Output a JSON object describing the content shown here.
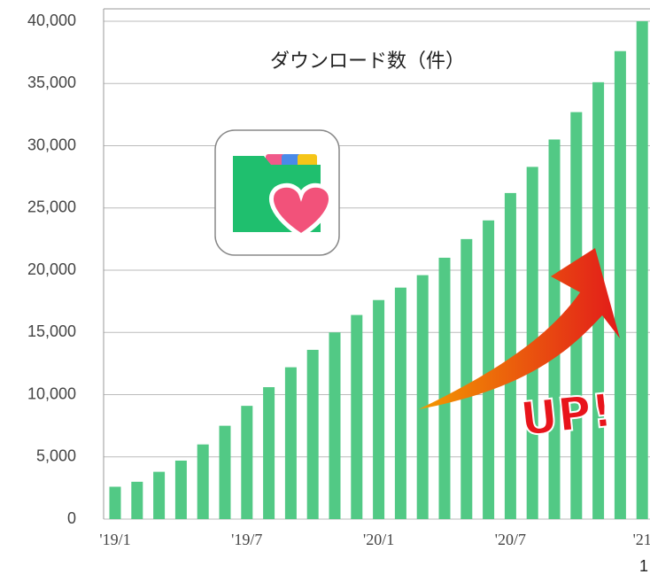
{
  "chart_data": {
    "type": "bar",
    "title": "ダウンロード数（件）",
    "categories": [
      "'19/1",
      null,
      null,
      null,
      null,
      null,
      "'19/7",
      null,
      null,
      null,
      null,
      null,
      "'20/1",
      null,
      null,
      null,
      null,
      null,
      "'20/7",
      null,
      null,
      null,
      null,
      null,
      "'21"
    ],
    "values": [
      2600,
      3000,
      3800,
      4700,
      6000,
      7500,
      9100,
      10600,
      12200,
      13600,
      15000,
      16400,
      17600,
      18600,
      19600,
      21000,
      22500,
      24000,
      26200,
      28300,
      30500,
      32700,
      35100,
      37600,
      40000
    ],
    "color": "#52c985",
    "ylim": [
      0,
      40000
    ],
    "yticks": [
      0,
      {
        "value": 5000,
        "label": "5,000"
      },
      {
        "value": 10000,
        "label": "10,000"
      },
      {
        "value": 15000,
        "label": "15,000"
      },
      {
        "value": 20000,
        "label": "20,000"
      },
      {
        "value": 25000,
        "label": "25,000"
      },
      {
        "value": 30000,
        "label": "30,000"
      },
      {
        "value": 35000,
        "label": "35,000"
      },
      {
        "value": 40000,
        "label": "40,000"
      }
    ],
    "grid": true,
    "annotation": "UP!",
    "page_number": "1"
  }
}
